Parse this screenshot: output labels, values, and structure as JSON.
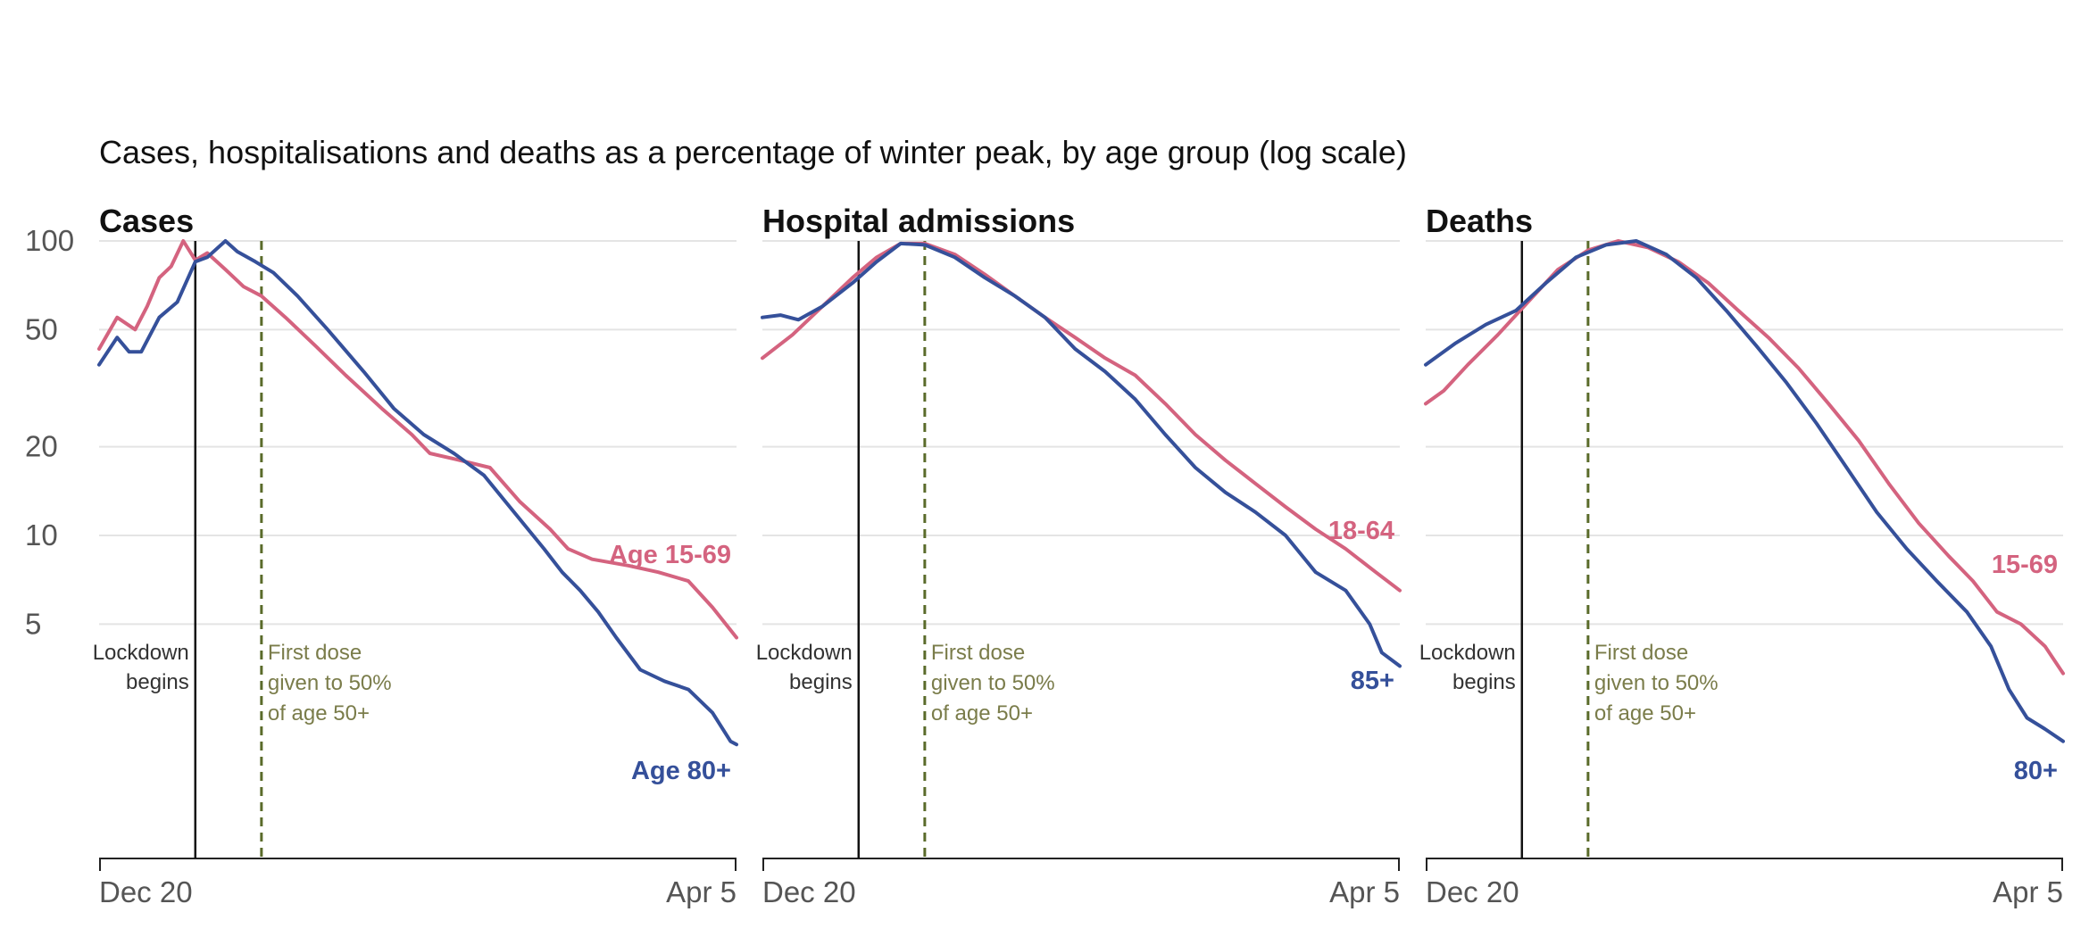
{
  "chart_data": {
    "type": "line",
    "title": "Cases, hospitalisations and deaths as a percentage of winter peak, by age group (log scale)",
    "y_scale": "log",
    "ylim": [
      0.8,
      100
    ],
    "y_ticks": [
      {
        "value": 100,
        "label": "100"
      },
      {
        "value": 50,
        "label": "50"
      },
      {
        "value": 20,
        "label": "20"
      },
      {
        "value": 10,
        "label": "10"
      },
      {
        "value": 5,
        "label": "5"
      }
    ],
    "x_domain": [
      "2020-12-20",
      "2021-04-05"
    ],
    "grid": "horizontal",
    "colors": {
      "younger": "#d4637f",
      "older": "#35509a",
      "lockdown": "#111111",
      "first_dose": "#5a6b2a"
    },
    "panels": [
      {
        "title": "Cases",
        "x_labels": [
          "Dec 20",
          "Apr 5"
        ],
        "lockdown": {
          "x": "2021-01-05",
          "label": [
            "Lockdown",
            "begins"
          ]
        },
        "first_dose": {
          "x": "2021-01-16",
          "label": [
            "First dose",
            "given to 50%",
            "of age 50+"
          ]
        },
        "series": [
          {
            "name": "Age 15-69",
            "color": "#d4637f",
            "points": [
              [
                "2020-12-20",
                43
              ],
              [
                "2020-12-23",
                55
              ],
              [
                "2020-12-26",
                50
              ],
              [
                "2020-12-28",
                60
              ],
              [
                "2020-12-30",
                75
              ],
              [
                "2021-01-01",
                82
              ],
              [
                "2021-01-03",
                100
              ],
              [
                "2021-01-05",
                86
              ],
              [
                "2021-01-07",
                91
              ],
              [
                "2021-01-10",
                80
              ],
              [
                "2021-01-13",
                70
              ],
              [
                "2021-01-16",
                65
              ],
              [
                "2021-01-20",
                55
              ],
              [
                "2021-01-25",
                44
              ],
              [
                "2021-01-30",
                35
              ],
              [
                "2021-02-05",
                27
              ],
              [
                "2021-02-10",
                22
              ],
              [
                "2021-02-13",
                19
              ],
              [
                "2021-02-18",
                18
              ],
              [
                "2021-02-23",
                17
              ],
              [
                "2021-02-28",
                13
              ],
              [
                "2021-03-05",
                10.5
              ],
              [
                "2021-03-08",
                9.0
              ],
              [
                "2021-03-12",
                8.3
              ],
              [
                "2021-03-18",
                7.9
              ],
              [
                "2021-03-23",
                7.5
              ],
              [
                "2021-03-28",
                7.0
              ],
              [
                "2021-04-01",
                5.7
              ],
              [
                "2021-04-05",
                4.5
              ]
            ]
          },
          {
            "name": "Age 80+",
            "color": "#35509a",
            "points": [
              [
                "2020-12-20",
                38
              ],
              [
                "2020-12-23",
                47
              ],
              [
                "2020-12-25",
                42
              ],
              [
                "2020-12-27",
                42
              ],
              [
                "2020-12-30",
                55
              ],
              [
                "2021-01-02",
                62
              ],
              [
                "2021-01-05",
                85
              ],
              [
                "2021-01-07",
                88
              ],
              [
                "2021-01-10",
                100
              ],
              [
                "2021-01-12",
                92
              ],
              [
                "2021-01-15",
                85
              ],
              [
                "2021-01-18",
                78
              ],
              [
                "2021-01-22",
                65
              ],
              [
                "2021-01-27",
                50
              ],
              [
                "2021-02-02",
                36
              ],
              [
                "2021-02-07",
                27
              ],
              [
                "2021-02-12",
                22
              ],
              [
                "2021-02-17",
                19
              ],
              [
                "2021-02-22",
                16
              ],
              [
                "2021-02-27",
                12
              ],
              [
                "2021-03-04",
                9
              ],
              [
                "2021-03-07",
                7.5
              ],
              [
                "2021-03-10",
                6.5
              ],
              [
                "2021-03-13",
                5.5
              ],
              [
                "2021-03-16",
                4.5
              ],
              [
                "2021-03-20",
                3.5
              ],
              [
                "2021-03-24",
                3.2
              ],
              [
                "2021-03-28",
                3.0
              ],
              [
                "2021-04-01",
                2.5
              ],
              [
                "2021-04-04",
                2.0
              ],
              [
                "2021-04-05",
                1.95
              ]
            ]
          }
        ]
      },
      {
        "title": "Hospital admissions",
        "x_labels": [
          "Dec 20",
          "Apr 5"
        ],
        "lockdown": {
          "x": "2021-01-05",
          "label": [
            "Lockdown",
            "begins"
          ]
        },
        "first_dose": {
          "x": "2021-01-16",
          "label": [
            "First dose",
            "given to 50%",
            "of age 50+"
          ]
        },
        "series": [
          {
            "name": "18-64",
            "color": "#d4637f",
            "points": [
              [
                "2020-12-20",
                40
              ],
              [
                "2020-12-25",
                48
              ],
              [
                "2020-12-30",
                60
              ],
              [
                "2021-01-04",
                75
              ],
              [
                "2021-01-08",
                88
              ],
              [
                "2021-01-12",
                98
              ],
              [
                "2021-01-16",
                98
              ],
              [
                "2021-01-21",
                90
              ],
              [
                "2021-01-26",
                77
              ],
              [
                "2021-01-31",
                65
              ],
              [
                "2021-02-05",
                55
              ],
              [
                "2021-02-10",
                47
              ],
              [
                "2021-02-15",
                40
              ],
              [
                "2021-02-20",
                35
              ],
              [
                "2021-02-25",
                28
              ],
              [
                "2021-03-02",
                22
              ],
              [
                "2021-03-07",
                18
              ],
              [
                "2021-03-12",
                15
              ],
              [
                "2021-03-17",
                12.5
              ],
              [
                "2021-03-22",
                10.5
              ],
              [
                "2021-03-27",
                9
              ],
              [
                "2021-04-01",
                7.5
              ],
              [
                "2021-04-05",
                6.5
              ]
            ]
          },
          {
            "name": "85+",
            "color": "#35509a",
            "points": [
              [
                "2020-12-20",
                55
              ],
              [
                "2020-12-23",
                56
              ],
              [
                "2020-12-26",
                54
              ],
              [
                "2020-12-30",
                60
              ],
              [
                "2021-01-04",
                72
              ],
              [
                "2021-01-08",
                85
              ],
              [
                "2021-01-12",
                98
              ],
              [
                "2021-01-16",
                97
              ],
              [
                "2021-01-21",
                88
              ],
              [
                "2021-01-26",
                75
              ],
              [
                "2021-01-31",
                65
              ],
              [
                "2021-02-05",
                55
              ],
              [
                "2021-02-10",
                43
              ],
              [
                "2021-02-15",
                36
              ],
              [
                "2021-02-20",
                29
              ],
              [
                "2021-02-25",
                22
              ],
              [
                "2021-03-02",
                17
              ],
              [
                "2021-03-07",
                14
              ],
              [
                "2021-03-12",
                12
              ],
              [
                "2021-03-17",
                10
              ],
              [
                "2021-03-22",
                7.5
              ],
              [
                "2021-03-27",
                6.5
              ],
              [
                "2021-03-31",
                5
              ],
              [
                "2021-04-02",
                4
              ],
              [
                "2021-04-05",
                3.6
              ]
            ]
          }
        ]
      },
      {
        "title": "Deaths",
        "x_labels": [
          "Dec 20",
          "Apr 5"
        ],
        "lockdown": {
          "x": "2021-01-05",
          "label": [
            "Lockdown",
            "begins"
          ]
        },
        "first_dose": {
          "x": "2021-01-16",
          "label": [
            "First dose",
            "given to 50%",
            "of age 50+"
          ]
        },
        "series": [
          {
            "name": "15-69",
            "color": "#d4637f",
            "points": [
              [
                "2020-12-20",
                28
              ],
              [
                "2020-12-23",
                31
              ],
              [
                "2020-12-27",
                38
              ],
              [
                "2021-01-01",
                48
              ],
              [
                "2021-01-06",
                62
              ],
              [
                "2021-01-11",
                80
              ],
              [
                "2021-01-16",
                93
              ],
              [
                "2021-01-21",
                100
              ],
              [
                "2021-01-26",
                95
              ],
              [
                "2021-01-31",
                85
              ],
              [
                "2021-02-05",
                72
              ],
              [
                "2021-02-10",
                58
              ],
              [
                "2021-02-15",
                47
              ],
              [
                "2021-02-20",
                37
              ],
              [
                "2021-02-25",
                28
              ],
              [
                "2021-03-02",
                21
              ],
              [
                "2021-03-07",
                15
              ],
              [
                "2021-03-12",
                11
              ],
              [
                "2021-03-17",
                8.5
              ],
              [
                "2021-03-21",
                7
              ],
              [
                "2021-03-25",
                5.5
              ],
              [
                "2021-03-29",
                5.0
              ],
              [
                "2021-04-02",
                4.2
              ],
              [
                "2021-04-05",
                3.4
              ]
            ]
          },
          {
            "name": "80+",
            "color": "#35509a",
            "points": [
              [
                "2020-12-20",
                38
              ],
              [
                "2020-12-25",
                45
              ],
              [
                "2020-12-30",
                52
              ],
              [
                "2021-01-04",
                58
              ],
              [
                "2021-01-09",
                72
              ],
              [
                "2021-01-14",
                88
              ],
              [
                "2021-01-19",
                97
              ],
              [
                "2021-01-24",
                100
              ],
              [
                "2021-01-29",
                90
              ],
              [
                "2021-02-03",
                75
              ],
              [
                "2021-02-08",
                58
              ],
              [
                "2021-02-13",
                44
              ],
              [
                "2021-02-18",
                33
              ],
              [
                "2021-02-23",
                24
              ],
              [
                "2021-02-28",
                17
              ],
              [
                "2021-03-05",
                12
              ],
              [
                "2021-03-10",
                9
              ],
              [
                "2021-03-15",
                7
              ],
              [
                "2021-03-20",
                5.5
              ],
              [
                "2021-03-24",
                4.2
              ],
              [
                "2021-03-27",
                3.0
              ],
              [
                "2021-03-30",
                2.4
              ],
              [
                "2021-04-02",
                2.2
              ],
              [
                "2021-04-05",
                2.0
              ]
            ]
          }
        ]
      }
    ]
  }
}
